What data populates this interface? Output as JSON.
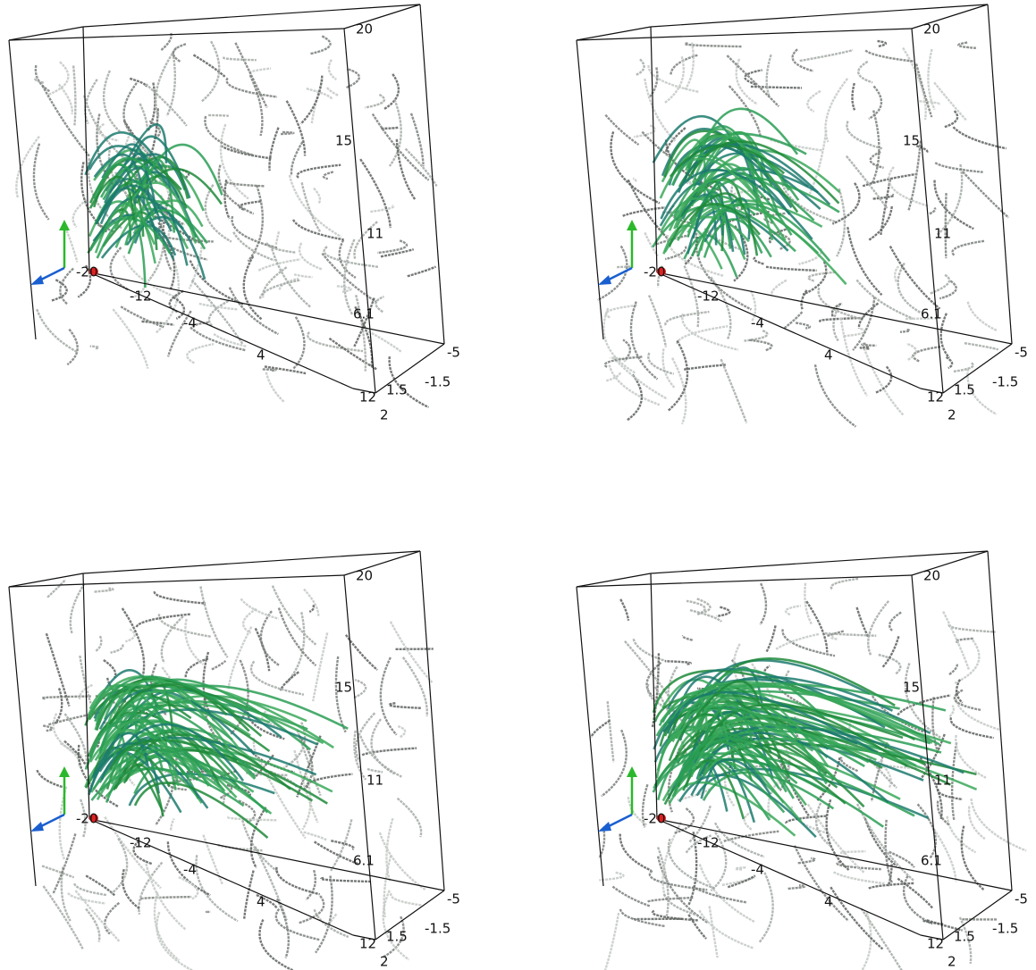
{
  "panels": [
    {
      "vertical_axis": {
        "ticks": [
          "20",
          "15",
          "11",
          "6.1",
          "1.5"
        ]
      },
      "horizontal_axis": {
        "ticks": [
          "-20",
          "-12",
          "-4",
          "4",
          "12"
        ]
      },
      "depth_axis": {
        "ticks": [
          "-5",
          "-1.5",
          "2"
        ]
      }
    },
    {
      "vertical_axis": {
        "ticks": [
          "20",
          "15",
          "11",
          "6.1",
          "1.5"
        ]
      },
      "horizontal_axis": {
        "ticks": [
          "-20",
          "-12",
          "-4",
          "4",
          "12"
        ]
      },
      "depth_axis": {
        "ticks": [
          "-5",
          "-1.5",
          "2"
        ]
      }
    },
    {
      "vertical_axis": {
        "ticks": [
          "20",
          "15",
          "11",
          "6.1",
          "1.5"
        ]
      },
      "horizontal_axis": {
        "ticks": [
          "-20",
          "-12",
          "-4",
          "4",
          "12"
        ]
      },
      "depth_axis": {
        "ticks": [
          "-5",
          "-1.5",
          "2"
        ]
      }
    },
    {
      "vertical_axis": {
        "ticks": [
          "20",
          "15",
          "11",
          "6.1",
          "1.5"
        ]
      },
      "horizontal_axis": {
        "ticks": [
          "-20",
          "-12",
          "-4",
          "4",
          "12"
        ]
      },
      "depth_axis": {
        "ticks": [
          "-5",
          "-1.5",
          "2"
        ]
      }
    }
  ]
}
